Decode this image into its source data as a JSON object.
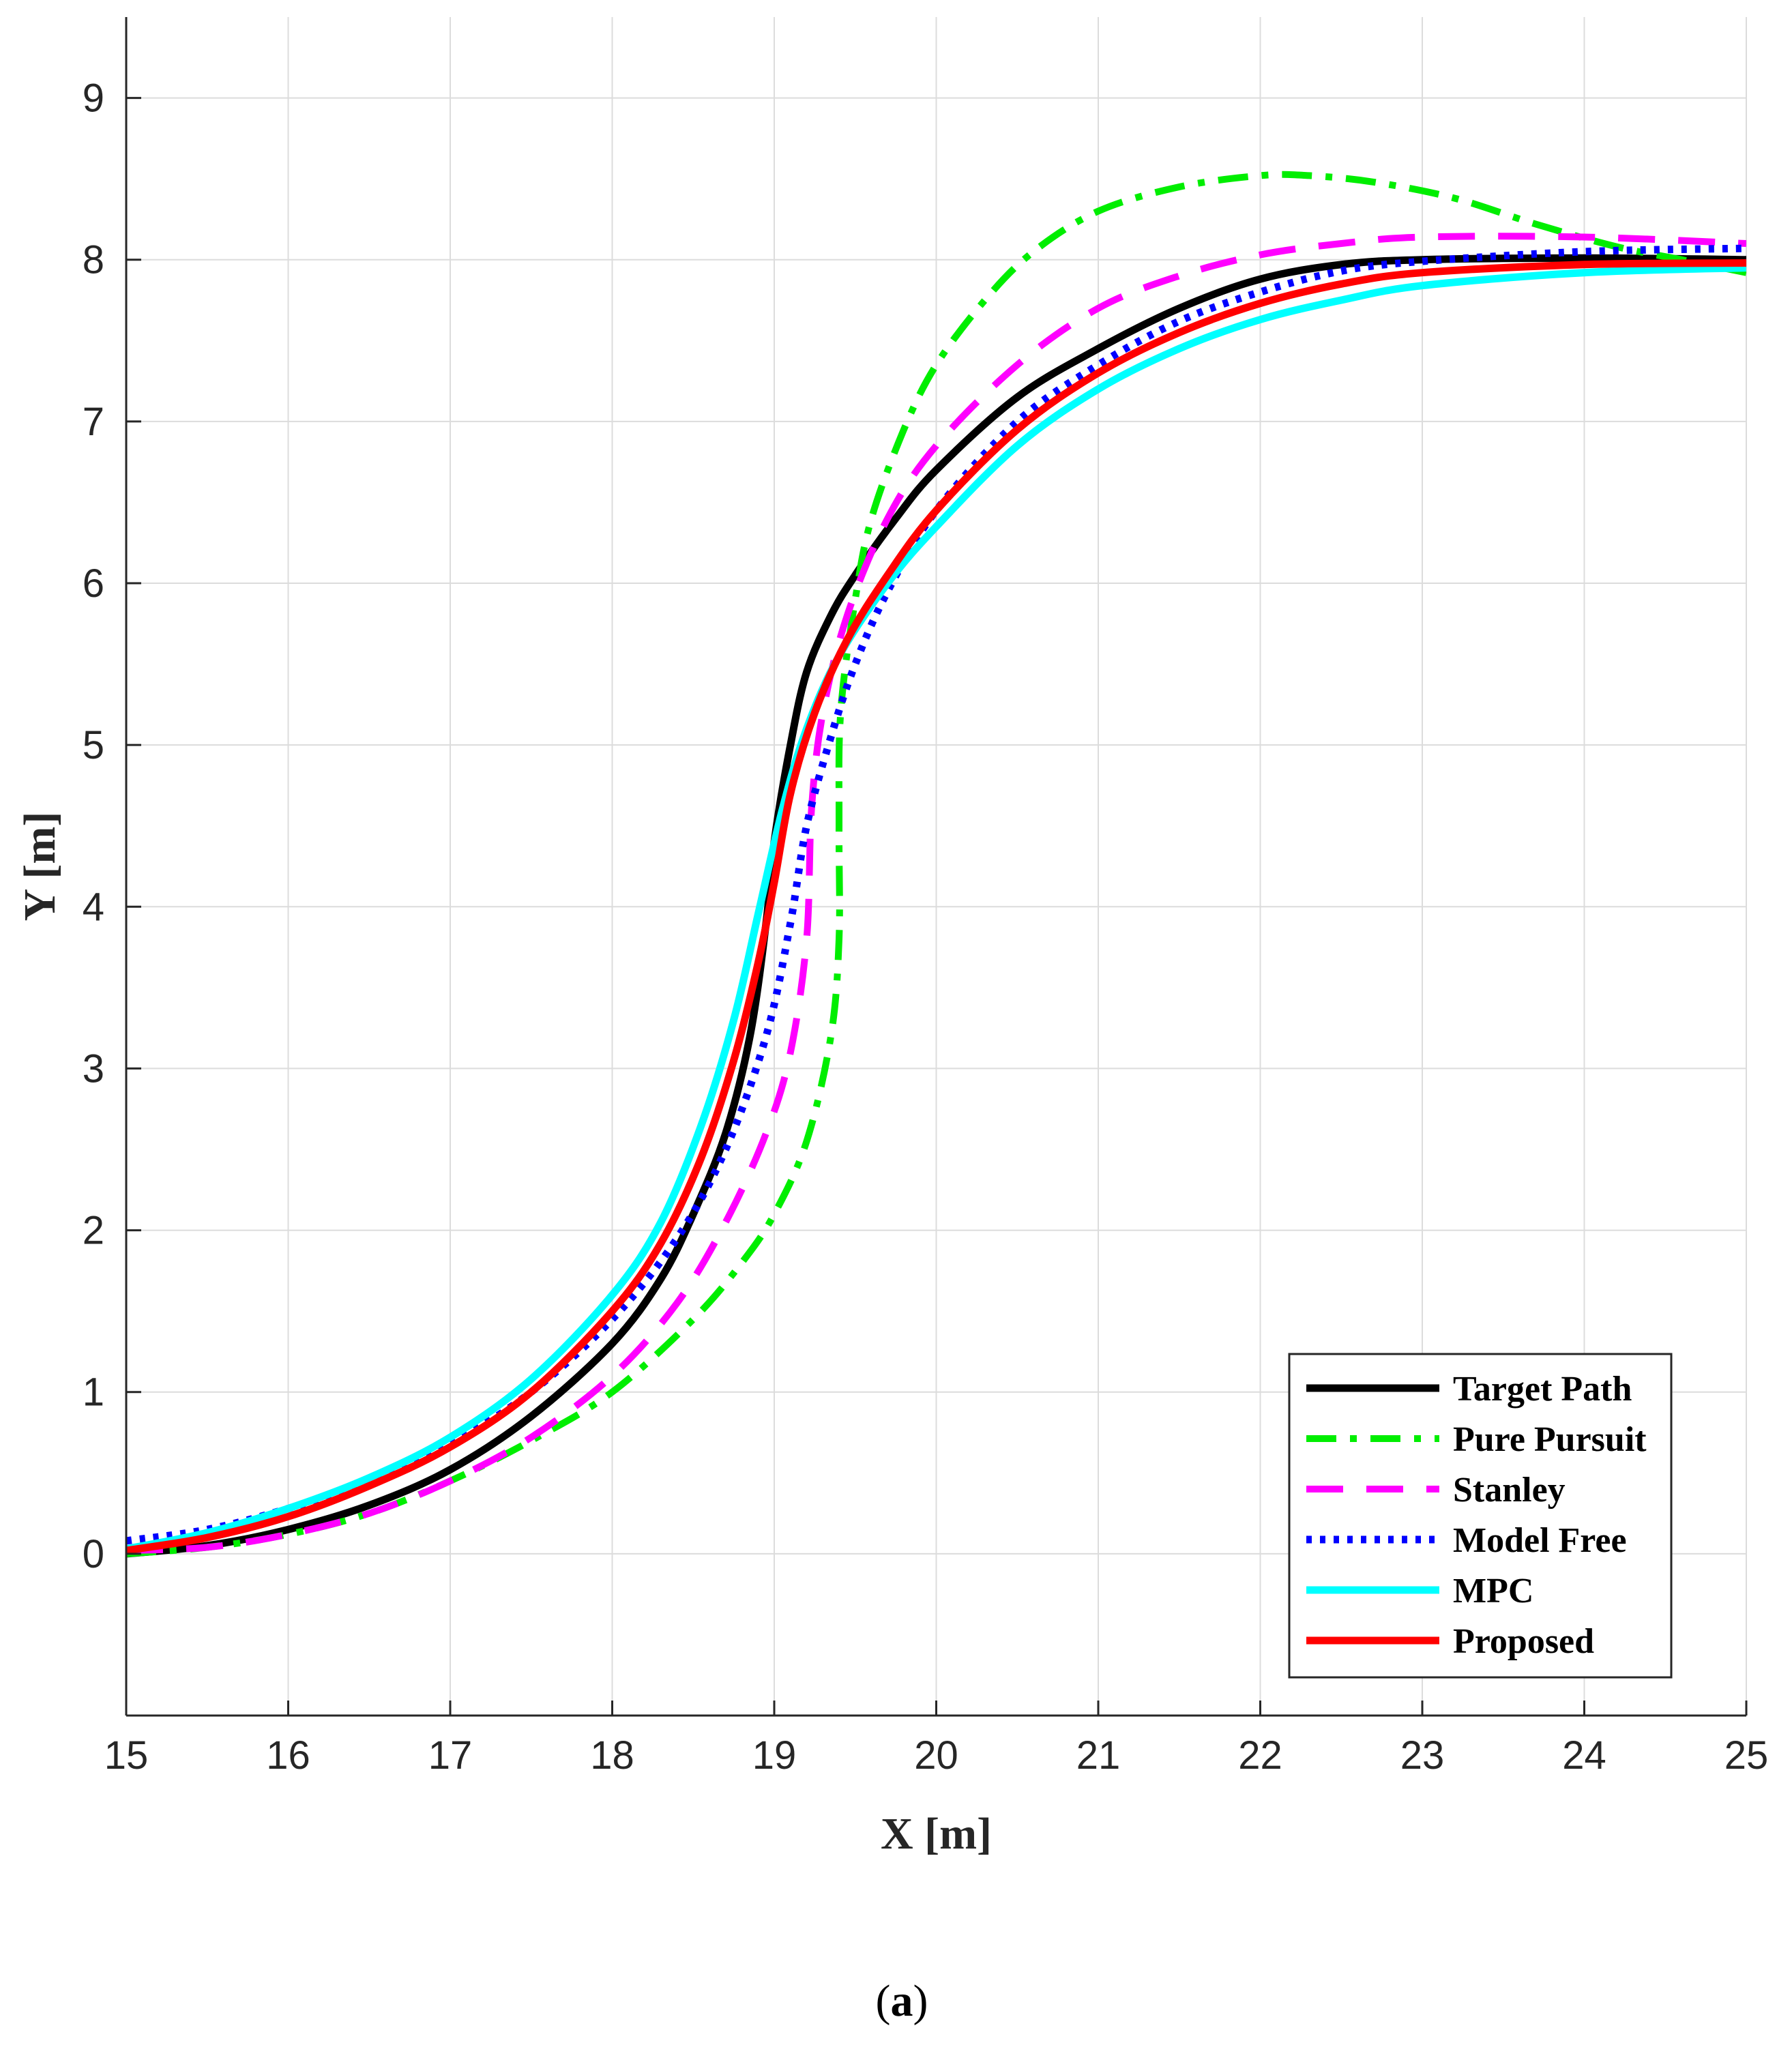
{
  "chart_data": {
    "type": "line",
    "title": "",
    "xlabel": "X [m]",
    "ylabel": "Y [m]",
    "xlim": [
      15,
      25
    ],
    "ylim": [
      -1,
      9.5
    ],
    "xticks": [
      15,
      16,
      17,
      18,
      19,
      20,
      21,
      22,
      23,
      24,
      25
    ],
    "yticks": [
      0,
      1,
      2,
      3,
      4,
      5,
      6,
      7,
      8,
      9
    ],
    "grid": true,
    "legend_position": "bottom-right",
    "caption_prefix": "(",
    "caption_letter": "a",
    "caption_suffix": ")",
    "series": [
      {
        "name": "Target Path",
        "color": "#000000",
        "style": "solid",
        "points": [
          [
            15.0,
            0.0
          ],
          [
            15.5,
            0.05
          ],
          [
            16.0,
            0.15
          ],
          [
            16.5,
            0.3
          ],
          [
            17.0,
            0.52
          ],
          [
            17.5,
            0.85
          ],
          [
            18.0,
            1.3
          ],
          [
            18.3,
            1.7
          ],
          [
            18.5,
            2.1
          ],
          [
            18.7,
            2.6
          ],
          [
            18.85,
            3.2
          ],
          [
            18.95,
            3.9
          ],
          [
            19.0,
            4.4
          ],
          [
            19.1,
            5.0
          ],
          [
            19.2,
            5.45
          ],
          [
            19.35,
            5.8
          ],
          [
            19.5,
            6.05
          ],
          [
            19.75,
            6.4
          ],
          [
            20.0,
            6.7
          ],
          [
            20.5,
            7.15
          ],
          [
            21.0,
            7.45
          ],
          [
            21.5,
            7.7
          ],
          [
            22.0,
            7.88
          ],
          [
            22.5,
            7.97
          ],
          [
            23.0,
            8.0
          ],
          [
            24.0,
            8.01
          ],
          [
            25.0,
            8.0
          ]
        ]
      },
      {
        "name": "Pure Pursuit",
        "color": "#00ee00",
        "style": "dashdot",
        "points": [
          [
            15.0,
            0.0
          ],
          [
            15.5,
            0.04
          ],
          [
            16.0,
            0.12
          ],
          [
            16.5,
            0.25
          ],
          [
            17.0,
            0.45
          ],
          [
            17.5,
            0.7
          ],
          [
            18.0,
            1.0
          ],
          [
            18.5,
            1.45
          ],
          [
            18.8,
            1.8
          ],
          [
            19.0,
            2.1
          ],
          [
            19.2,
            2.55
          ],
          [
            19.35,
            3.2
          ],
          [
            19.4,
            3.8
          ],
          [
            19.4,
            4.5
          ],
          [
            19.41,
            5.2
          ],
          [
            19.5,
            5.9
          ],
          [
            19.6,
            6.4
          ],
          [
            19.8,
            6.95
          ],
          [
            20.0,
            7.35
          ],
          [
            20.3,
            7.75
          ],
          [
            20.6,
            8.05
          ],
          [
            21.0,
            8.3
          ],
          [
            21.5,
            8.45
          ],
          [
            22.0,
            8.52
          ],
          [
            22.3,
            8.52
          ],
          [
            22.7,
            8.48
          ],
          [
            23.2,
            8.38
          ],
          [
            23.7,
            8.22
          ],
          [
            24.2,
            8.08
          ],
          [
            24.6,
            8.0
          ],
          [
            25.0,
            7.92
          ]
        ]
      },
      {
        "name": "Stanley",
        "color": "#ff00ff",
        "style": "dashed",
        "points": [
          [
            15.0,
            0.02
          ],
          [
            15.5,
            0.04
          ],
          [
            16.0,
            0.12
          ],
          [
            16.5,
            0.25
          ],
          [
            17.0,
            0.45
          ],
          [
            17.5,
            0.72
          ],
          [
            18.0,
            1.1
          ],
          [
            18.4,
            1.55
          ],
          [
            18.7,
            2.05
          ],
          [
            18.95,
            2.6
          ],
          [
            19.1,
            3.1
          ],
          [
            19.2,
            3.8
          ],
          [
            19.23,
            4.6
          ],
          [
            19.3,
            5.2
          ],
          [
            19.45,
            5.8
          ],
          [
            19.7,
            6.4
          ],
          [
            20.0,
            6.85
          ],
          [
            20.5,
            7.35
          ],
          [
            21.0,
            7.7
          ],
          [
            21.5,
            7.9
          ],
          [
            22.0,
            8.03
          ],
          [
            22.5,
            8.1
          ],
          [
            23.0,
            8.14
          ],
          [
            24.0,
            8.14
          ],
          [
            25.0,
            8.1
          ]
        ]
      },
      {
        "name": "Model Free",
        "color": "#0000ff",
        "style": "dotted",
        "points": [
          [
            15.0,
            0.08
          ],
          [
            15.5,
            0.15
          ],
          [
            16.0,
            0.28
          ],
          [
            16.5,
            0.45
          ],
          [
            17.0,
            0.68
          ],
          [
            17.5,
            1.0
          ],
          [
            18.0,
            1.45
          ],
          [
            18.4,
            1.95
          ],
          [
            18.7,
            2.5
          ],
          [
            18.95,
            3.2
          ],
          [
            19.1,
            3.9
          ],
          [
            19.2,
            4.5
          ],
          [
            19.35,
            5.05
          ],
          [
            19.5,
            5.5
          ],
          [
            19.7,
            5.95
          ],
          [
            20.0,
            6.45
          ],
          [
            20.5,
            7.0
          ],
          [
            21.0,
            7.35
          ],
          [
            21.5,
            7.62
          ],
          [
            22.0,
            7.8
          ],
          [
            22.5,
            7.93
          ],
          [
            23.0,
            7.99
          ],
          [
            24.0,
            8.05
          ],
          [
            25.0,
            8.07
          ]
        ]
      },
      {
        "name": "MPC",
        "color": "#00ffff",
        "style": "solid",
        "points": [
          [
            15.0,
            0.03
          ],
          [
            15.5,
            0.13
          ],
          [
            16.0,
            0.28
          ],
          [
            16.5,
            0.47
          ],
          [
            17.0,
            0.72
          ],
          [
            17.5,
            1.08
          ],
          [
            18.0,
            1.6
          ],
          [
            18.3,
            2.05
          ],
          [
            18.55,
            2.65
          ],
          [
            18.75,
            3.3
          ],
          [
            18.9,
            3.95
          ],
          [
            19.05,
            4.6
          ],
          [
            19.2,
            5.1
          ],
          [
            19.4,
            5.55
          ],
          [
            19.7,
            6.0
          ],
          [
            20.0,
            6.35
          ],
          [
            20.5,
            6.85
          ],
          [
            21.0,
            7.2
          ],
          [
            21.5,
            7.45
          ],
          [
            22.0,
            7.63
          ],
          [
            22.5,
            7.75
          ],
          [
            23.0,
            7.84
          ],
          [
            24.0,
            7.92
          ],
          [
            25.0,
            7.95
          ]
        ]
      },
      {
        "name": "Proposed",
        "color": "#ff0000",
        "style": "solid",
        "points": [
          [
            15.0,
            0.02
          ],
          [
            15.5,
            0.1
          ],
          [
            16.0,
            0.23
          ],
          [
            16.5,
            0.42
          ],
          [
            17.0,
            0.66
          ],
          [
            17.5,
            1.0
          ],
          [
            18.0,
            1.5
          ],
          [
            18.3,
            1.92
          ],
          [
            18.55,
            2.45
          ],
          [
            18.75,
            3.05
          ],
          [
            18.9,
            3.65
          ],
          [
            19.0,
            4.15
          ],
          [
            19.1,
            4.7
          ],
          [
            19.25,
            5.2
          ],
          [
            19.45,
            5.65
          ],
          [
            19.7,
            6.05
          ],
          [
            20.0,
            6.45
          ],
          [
            20.5,
            6.95
          ],
          [
            21.0,
            7.3
          ],
          [
            21.5,
            7.55
          ],
          [
            22.0,
            7.73
          ],
          [
            22.5,
            7.85
          ],
          [
            23.0,
            7.92
          ],
          [
            24.0,
            7.97
          ],
          [
            25.0,
            7.98
          ]
        ]
      }
    ]
  }
}
